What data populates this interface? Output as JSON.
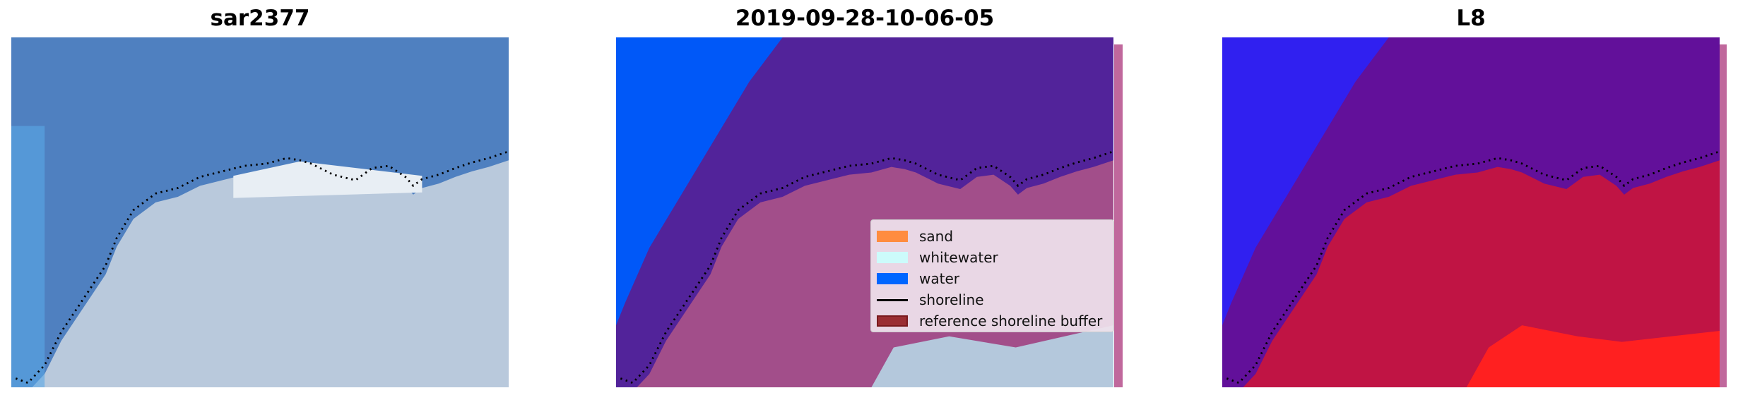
{
  "panels": [
    {
      "title": "sar2377"
    },
    {
      "title": "2019-09-28-10-06-05"
    },
    {
      "title": "L8"
    }
  ],
  "legend": {
    "items": [
      {
        "label": "sand",
        "color": "#ff8c3f",
        "kind": "patch"
      },
      {
        "label": "whitewater",
        "color": "#ccfbfb",
        "kind": "patch"
      },
      {
        "label": "water",
        "color": "#0066ff",
        "kind": "patch"
      },
      {
        "label": "shoreline",
        "color": "#000000",
        "kind": "line"
      },
      {
        "label": "reference shoreline buffer",
        "color": "#9a2e33",
        "kind": "patch"
      }
    ]
  },
  "colors": {
    "water_rgb": "#4f80c0",
    "land_rgb": "#b9c9dc",
    "class_water": "#0058f8",
    "overlay_purple": "#52239a",
    "overlay_pink": "#a24e8a",
    "l8_purple": "#62109a",
    "l8_red": "#c01444",
    "l8_bright_red": "#ff2020"
  }
}
